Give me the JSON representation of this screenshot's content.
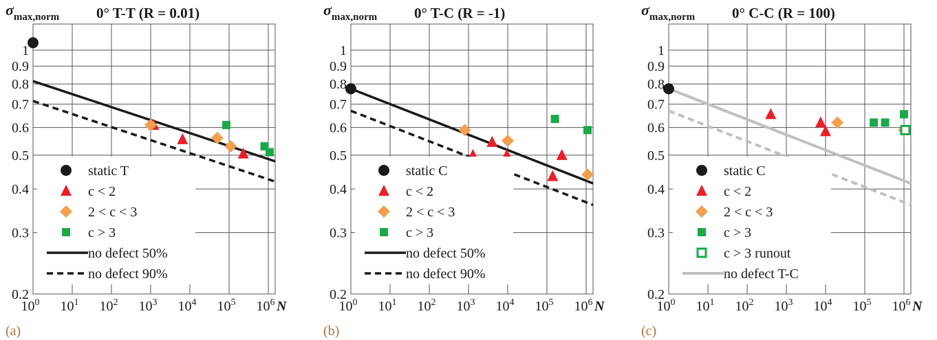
{
  "colors": {
    "static": "#1a1a1a",
    "c_lt_2": "#e8202a",
    "c_2_3": "#f0a050",
    "c_gt_3": "#1aa84a",
    "line50": "#1a1a1a",
    "line90": "#1a1a1a",
    "line_tc": "#c0c0c0",
    "grid": "#555555",
    "panel_label": "#b0703a"
  },
  "chart_data": [
    {
      "type": "scatter",
      "panel_label": "(a)",
      "title": "0° T-T (R = 0.01)",
      "ylabel": "σmax,norm",
      "xlabel": "N",
      "x_scale": "log",
      "y_scale": "log",
      "xlim": [
        1,
        1000000
      ],
      "ylim": [
        0.2,
        1.0
      ],
      "x_ticks": [
        "10^0",
        "10^1",
        "10^2",
        "10^3",
        "10^4",
        "10^5",
        "10^6"
      ],
      "y_ticks": [
        "0.2",
        "0.3",
        "0.4",
        "0.5",
        "0.6",
        "0.7",
        "0.8",
        "0.9",
        "1"
      ],
      "grid": true,
      "legend_position": "bottom-left",
      "series": [
        {
          "name": "static T",
          "kind": "static",
          "marker": "circle",
          "points": [
            [
              1,
              1.05
            ]
          ]
        },
        {
          "name": "c < 2",
          "kind": "c_lt_2",
          "marker": "triangle",
          "points": [
            [
              1200,
              0.61
            ],
            [
              6500,
              0.555
            ],
            [
              230000,
              0.505
            ]
          ]
        },
        {
          "name": "2 < c < 3",
          "kind": "c_2_3",
          "marker": "diamond",
          "points": [
            [
              1000,
              0.61
            ],
            [
              50000,
              0.56
            ],
            [
              110000,
              0.53
            ]
          ]
        },
        {
          "name": "c > 3",
          "kind": "c_gt_3",
          "marker": "square",
          "points": [
            [
              85000,
              0.61
            ],
            [
              800000,
              0.53
            ],
            [
              1300000,
              0.51
            ]
          ]
        },
        {
          "name": "no defect 50%",
          "kind": "line50",
          "marker": "line",
          "points": [
            [
              1,
              0.815
            ],
            [
              1600000,
              0.48
            ]
          ]
        },
        {
          "name": "no defect 90%",
          "kind": "line90",
          "marker": "dashed",
          "points": [
            [
              1,
              0.715
            ],
            [
              1600000,
              0.42
            ]
          ]
        }
      ]
    },
    {
      "type": "scatter",
      "panel_label": "(b)",
      "title": "0° T-C (R = -1)",
      "ylabel": "σmax,norm",
      "xlabel": "N",
      "x_scale": "log",
      "y_scale": "log",
      "xlim": [
        1,
        1000000
      ],
      "ylim": [
        0.2,
        1.0
      ],
      "x_ticks": [
        "10^0",
        "10^1",
        "10^2",
        "10^3",
        "10^4",
        "10^5",
        "10^6"
      ],
      "y_ticks": [
        "0.2",
        "0.3",
        "0.4",
        "0.5",
        "0.6",
        "0.7",
        "0.8",
        "0.9",
        "1"
      ],
      "grid": true,
      "legend_position": "bottom-left",
      "series": [
        {
          "name": "static C",
          "kind": "static",
          "marker": "circle",
          "points": [
            [
              1,
              0.775
            ]
          ]
        },
        {
          "name": "c < 2",
          "kind": "c_lt_2",
          "marker": "triangle",
          "points": [
            [
              1300,
              0.5
            ],
            [
              4000,
              0.545
            ],
            [
              9500,
              0.5
            ],
            [
              140000,
              0.435
            ],
            [
              240000,
              0.5
            ]
          ]
        },
        {
          "name": "2 < c < 3",
          "kind": "c_2_3",
          "marker": "diamond",
          "points": [
            [
              800,
              0.59
            ],
            [
              10000,
              0.55
            ],
            [
              1500000,
              0.44
            ]
          ]
        },
        {
          "name": "c > 3",
          "kind": "c_gt_3",
          "marker": "square",
          "points": [
            [
              160000,
              0.635
            ],
            [
              1300000,
              0.59
            ]
          ]
        },
        {
          "name": "no defect 50%",
          "kind": "line50",
          "marker": "line",
          "points": [
            [
              1,
              0.775
            ],
            [
              1600000,
              0.415
            ]
          ]
        },
        {
          "name": "no defect 90%",
          "kind": "line90",
          "marker": "dashed",
          "points": [
            [
              1,
              0.67
            ],
            [
              1600000,
              0.36
            ]
          ]
        }
      ]
    },
    {
      "type": "scatter",
      "panel_label": "(c)",
      "title": "0° C-C (R = 100)",
      "ylabel": "σmax,norm",
      "xlabel": "N",
      "x_scale": "log",
      "y_scale": "log",
      "xlim": [
        1,
        1000000
      ],
      "ylim": [
        0.2,
        1.0
      ],
      "x_ticks": [
        "10^0",
        "10^1",
        "10^2",
        "10^3",
        "10^4",
        "10^5",
        "10^6"
      ],
      "y_ticks": [
        "0.2",
        "0.3",
        "0.4",
        "0.5",
        "0.6",
        "0.7",
        "0.8",
        "0.9",
        "1"
      ],
      "grid": true,
      "legend_position": "bottom-left",
      "series": [
        {
          "name": "static C",
          "kind": "static",
          "marker": "circle",
          "points": [
            [
              1,
              0.775
            ]
          ]
        },
        {
          "name": "c < 2",
          "kind": "c_lt_2",
          "marker": "triangle",
          "points": [
            [
              400,
              0.655
            ],
            [
              7500,
              0.62
            ],
            [
              10000,
              0.585
            ]
          ]
        },
        {
          "name": "2 < c < 3",
          "kind": "c_2_3",
          "marker": "diamond",
          "points": [
            [
              20000,
              0.62
            ],
            [
              1000000,
              0.59
            ]
          ]
        },
        {
          "name": "c > 3",
          "kind": "c_gt_3",
          "marker": "square",
          "points": [
            [
              170000,
              0.62
            ],
            [
              330000,
              0.62
            ],
            [
              1000000,
              0.655
            ]
          ]
        },
        {
          "name": "c > 3 runout",
          "kind": "c_gt_3",
          "marker": "square-open",
          "points": [
            [
              1600000,
              0.59
            ]
          ]
        },
        {
          "name": "no defect T-C",
          "kind": "line_tc",
          "marker": "line",
          "points": [
            [
              1,
              0.775
            ],
            [
              1600000,
              0.415
            ]
          ]
        },
        {
          "name": "",
          "kind": "line_tc",
          "marker": "dashed-nolegend",
          "points": [
            [
              1,
              0.67
            ],
            [
              1600000,
              0.36
            ]
          ]
        }
      ]
    }
  ]
}
